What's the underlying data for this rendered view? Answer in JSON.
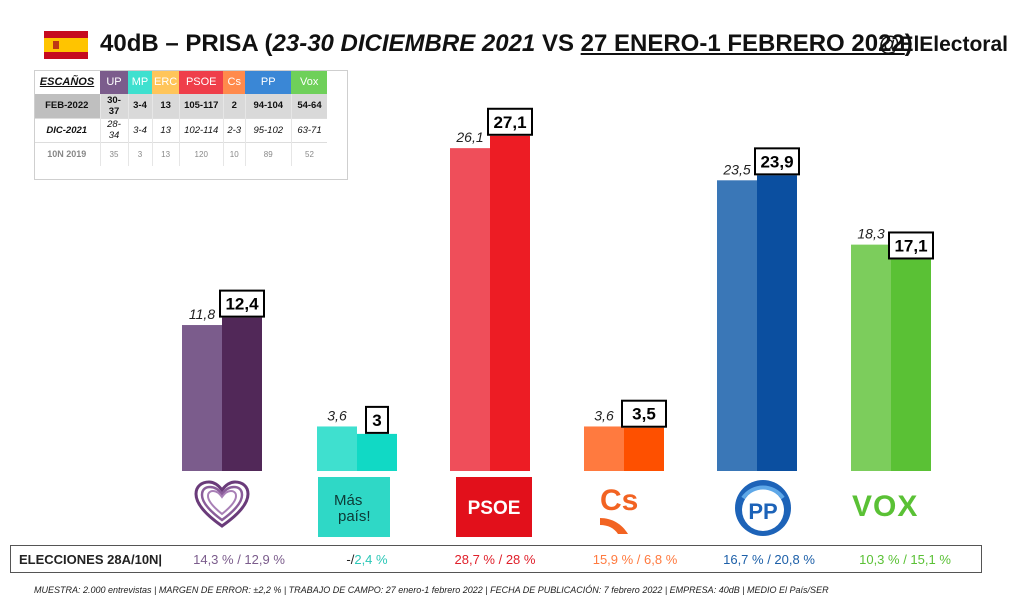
{
  "header": {
    "title_pre": "40dB – PRISA (",
    "title_dates_prev": "23-30 DICIEMBRE 2021",
    "title_vs": " VS ",
    "title_dates_new": "27 ENERO-1 FEBRERO 2022",
    "title_post": ")",
    "handle": "@ElElectoral"
  },
  "seats_table": {
    "header_label": "ESCAÑOS",
    "parties": [
      {
        "name": "UP",
        "color": "#7b5c8c"
      },
      {
        "name": "MP",
        "color": "#3fe0cf"
      },
      {
        "name": "ERC",
        "color": "#ffc55a"
      },
      {
        "name": "PSOE",
        "color": "#ef3e4a"
      },
      {
        "name": "Cs",
        "color": "#ff8a4c"
      },
      {
        "name": "PP",
        "color": "#3a87d6"
      },
      {
        "name": "Vox",
        "color": "#6fd05a"
      }
    ],
    "rows": [
      {
        "label": "FEB-2022",
        "values": [
          "30-37",
          "3-4",
          "13",
          "105-117",
          "2",
          "94-104",
          "54-64"
        ]
      },
      {
        "label": "DIC-2021",
        "values": [
          "28-34",
          "3-4",
          "13",
          "102-114",
          "2-3",
          "95-102",
          "63-71"
        ]
      },
      {
        "label": "10N 2019",
        "values": [
          "35",
          "3",
          "13",
          "120",
          "10",
          "89",
          "52"
        ]
      }
    ]
  },
  "chart_data": {
    "type": "bar",
    "categories": [
      "UP",
      "Más País",
      "PSOE",
      "Cs",
      "PP",
      "Vox"
    ],
    "series": [
      {
        "name": "DIC-2021",
        "values": [
          11.8,
          3.6,
          26.1,
          3.6,
          23.5,
          18.3
        ],
        "labels": [
          "11,8",
          "3,6",
          "26,1",
          "3,6",
          "23,5",
          "18,3"
        ]
      },
      {
        "name": "FEB-2022",
        "values": [
          12.4,
          3.0,
          27.1,
          3.5,
          23.9,
          17.1
        ],
        "labels": [
          "12,4",
          "3",
          "27,1",
          "3,5",
          "23,9",
          "17,1"
        ]
      }
    ],
    "colors_prev": [
      "#7b5c8c",
      "#3fe0cf",
      "#ef4e5a",
      "#ff7a3f",
      "#3a77b7",
      "#7ccd5c"
    ],
    "colors_new": [
      "#512858",
      "#11d9c5",
      "#ed1c24",
      "#fe5000",
      "#0b4fa0",
      "#5ac135"
    ],
    "ylim": [
      0,
      30
    ]
  },
  "logos": {
    "mas_pais_line1": "Más",
    "mas_pais_line2": "país!",
    "psoe": "PSOE",
    "cs": "Cs",
    "pp": "PP",
    "vox": "VOX"
  },
  "elections": {
    "label": "ELECCIONES 28A/10N|",
    "values": [
      {
        "text": "14,3 % / 12,9 %",
        "color": "#7b5c8c"
      },
      {
        "text_a": "-/",
        "text_b": "2,4 %",
        "color": "#2bc7b7"
      },
      {
        "text": "28,7  % / 28 %",
        "color": "#e0202b"
      },
      {
        "text": "15,9 % / 6,8 %",
        "color": "#ff7a3f"
      },
      {
        "text": "16,7 % / 20,8 %",
        "color": "#1c5fa8"
      },
      {
        "text": "10,3 % / 15,1 %",
        "color": "#5ac135"
      }
    ]
  },
  "footer": "MUESTRA: 2.000 entrevistas | MARGEN DE ERROR: ±2,2 % | TRABAJO DE CAMPO: 27 enero-1 febrero 2022 | FECHA DE PUBLICACIÓN: 7 febrero 2022 | EMPRESA: 40dB | MEDIO El País/SER"
}
